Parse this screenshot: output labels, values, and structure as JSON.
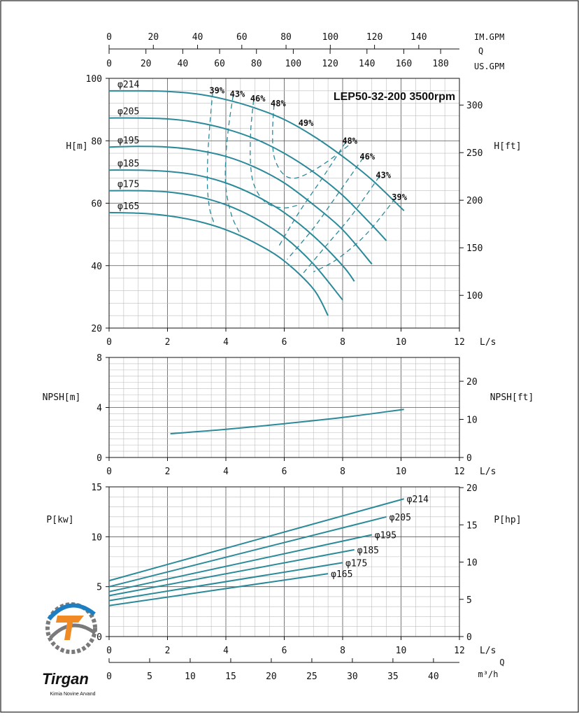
{
  "model": "LEP50-32-200 3500rpm",
  "colors": {
    "curve": "#2b8a99",
    "grid_major": "#555555",
    "grid_minor": "#bdbdbd",
    "axis": "#111111",
    "logo_blue": "#1d7fc2",
    "logo_orange": "#f08a24",
    "logo_gray": "#7a7a7a"
  },
  "logo": {
    "name": "Tirgan",
    "tagline": "Kimia Novine Arvand"
  },
  "chart_data": [
    {
      "type": "line",
      "xlabel": "L/s",
      "ylabel": "H[m]",
      "ylabel_right": "H[ft]",
      "xlim": [
        0,
        12
      ],
      "ylim": [
        20,
        100
      ],
      "x_ticks": [
        "0",
        "2",
        "4",
        "6",
        "8",
        "10",
        "12"
      ],
      "y_ticks": [
        "20",
        "40",
        "60",
        "80",
        "100"
      ],
      "y_right_ticks": [
        "100",
        "150",
        "200",
        "250",
        "300"
      ],
      "top_axes": [
        {
          "label": "IM.GPM",
          "ticks": [
            "0",
            "20",
            "40",
            "60",
            "80",
            "100",
            "120",
            "140"
          ],
          "per_ls": 13.198
        },
        {
          "label": "Q",
          "ticks": []
        },
        {
          "label": "US.GPM",
          "ticks": [
            "0",
            "20",
            "40",
            "60",
            "80",
            "100",
            "120",
            "140",
            "160",
            "180"
          ],
          "per_ls": 15.85
        }
      ],
      "series": [
        {
          "name": "φ214",
          "x": [
            0,
            1,
            2,
            3,
            4,
            5,
            6,
            7,
            8,
            9,
            10.1
          ],
          "values": [
            96,
            96,
            95.8,
            95,
            93.2,
            90.5,
            86.8,
            81.5,
            75,
            67.5,
            57.6
          ]
        },
        {
          "name": "φ205",
          "x": [
            0,
            1,
            2,
            3,
            4,
            5,
            6,
            7,
            8,
            9,
            9.5
          ],
          "values": [
            87.3,
            87.3,
            87,
            85.9,
            83.8,
            80.6,
            76,
            70,
            62.5,
            53,
            48
          ]
        },
        {
          "name": "φ195",
          "x": [
            0,
            1,
            2,
            3,
            4,
            5,
            6,
            7,
            8,
            9
          ],
          "values": [
            78,
            78.2,
            78,
            77,
            75,
            71.5,
            66.5,
            59.5,
            51.5,
            40.5
          ]
        },
        {
          "name": "φ185",
          "x": [
            0,
            1,
            2,
            3,
            4,
            5,
            6,
            7,
            8,
            8.4
          ],
          "values": [
            70.6,
            70.6,
            70.2,
            69,
            66.5,
            62.5,
            57,
            49.5,
            40,
            35
          ]
        },
        {
          "name": "φ175",
          "x": [
            0,
            1,
            2,
            3,
            4,
            5,
            6,
            7,
            8
          ],
          "values": [
            64,
            64,
            63.6,
            62.2,
            59.5,
            55.2,
            49.2,
            40.5,
            29
          ]
        },
        {
          "name": "φ165",
          "x": [
            0,
            1,
            2,
            3,
            4,
            5,
            6,
            7,
            7.5
          ],
          "values": [
            57,
            56.8,
            56,
            54.3,
            51.5,
            47.3,
            41.5,
            32.5,
            24
          ]
        }
      ],
      "efficiency_lines": [
        {
          "label": "39%",
          "x": [
            3.55,
            3.45,
            3.38,
            3.37,
            3.45,
            3.6
          ],
          "values": [
            95.6,
            85,
            75,
            65,
            58,
            53.5
          ]
        },
        {
          "label": "43%",
          "x": [
            4.25,
            4.1,
            4.0,
            4.0,
            4.2,
            4.5
          ],
          "values": [
            94.5,
            85,
            75,
            65,
            56,
            50
          ]
        },
        {
          "label": "46%",
          "x": [
            4.95,
            4.85,
            4.85,
            5.0,
            5.4,
            6.0,
            6.5
          ],
          "values": [
            93,
            83,
            72,
            65,
            60,
            58.5,
            59.5
          ]
        },
        {
          "label": "48%",
          "x": [
            5.65,
            5.6,
            5.65,
            5.95,
            6.35,
            6.9,
            7.5,
            8.2
          ],
          "values": [
            91.5,
            83,
            75,
            69.5,
            68,
            70,
            73.5,
            78.5
          ]
        },
        {
          "label": "49%",
          "x": [
            6.6
          ],
          "values": [
            85.2
          ]
        },
        {
          "label": "48%",
          "x": [
            8.1,
            7.3,
            6.5,
            5.8
          ],
          "values": [
            79.5,
            68,
            57,
            46
          ]
        },
        {
          "label": "46%",
          "x": [
            8.7,
            7.8,
            7.0,
            6.1
          ],
          "values": [
            74.5,
            62.5,
            52,
            42
          ]
        },
        {
          "label": "43%",
          "x": [
            9.25,
            8.3,
            7.4,
            6.6
          ],
          "values": [
            68.5,
            56,
            46,
            37
          ]
        },
        {
          "label": "39%",
          "x": [
            9.8,
            8.8,
            7.8,
            7.0
          ],
          "values": [
            61.5,
            50,
            42,
            38
          ]
        }
      ],
      "title": "LEP50-32-200 3500rpm"
    },
    {
      "type": "line",
      "xlabel": "L/s",
      "ylabel": "NPSH[m]",
      "ylabel_right": "NPSH[ft]",
      "xlim": [
        0,
        12
      ],
      "ylim": [
        0,
        8
      ],
      "x_ticks": [
        "0",
        "2",
        "4",
        "6",
        "8",
        "10",
        "12"
      ],
      "y_ticks": [
        "0",
        "4",
        "8"
      ],
      "y_right_ticks": [
        "0",
        "10",
        "20"
      ],
      "series": [
        {
          "name": "NPSH",
          "x": [
            2.1,
            4,
            6,
            8,
            10.1
          ],
          "values": [
            1.9,
            2.25,
            2.7,
            3.2,
            3.85
          ]
        }
      ]
    },
    {
      "type": "line",
      "xlabel": "L/s",
      "ylabel": "P[kw]",
      "ylabel_right": "P[hp]",
      "xlim": [
        0,
        12
      ],
      "ylim": [
        0,
        15
      ],
      "x_ticks": [
        "0",
        "2",
        "4",
        "6",
        "8",
        "10",
        "12"
      ],
      "y_ticks": [
        "0",
        "5",
        "10",
        "15"
      ],
      "y_right_ticks": [
        "0",
        "5",
        "10",
        "15",
        "20"
      ],
      "bottom_axis": {
        "label": "Q",
        "unit": "m³/h",
        "ticks": [
          "0",
          "5",
          "10",
          "15",
          "20",
          "25",
          "30",
          "35",
          "40"
        ],
        "per_ls": 3.6
      },
      "series": [
        {
          "name": "φ214",
          "x": [
            0,
            10.1
          ],
          "values": [
            5.6,
            13.8
          ]
        },
        {
          "name": "φ205",
          "x": [
            0,
            9.5
          ],
          "values": [
            5.0,
            12.0
          ]
        },
        {
          "name": "φ195",
          "x": [
            0,
            9.0
          ],
          "values": [
            4.5,
            10.2
          ]
        },
        {
          "name": "φ185",
          "x": [
            0,
            8.4
          ],
          "values": [
            4.1,
            8.7
          ]
        },
        {
          "name": "φ175",
          "x": [
            0,
            8.0
          ],
          "values": [
            3.6,
            7.4
          ]
        },
        {
          "name": "φ165",
          "x": [
            0,
            7.5
          ],
          "values": [
            3.1,
            6.3
          ]
        }
      ]
    }
  ]
}
